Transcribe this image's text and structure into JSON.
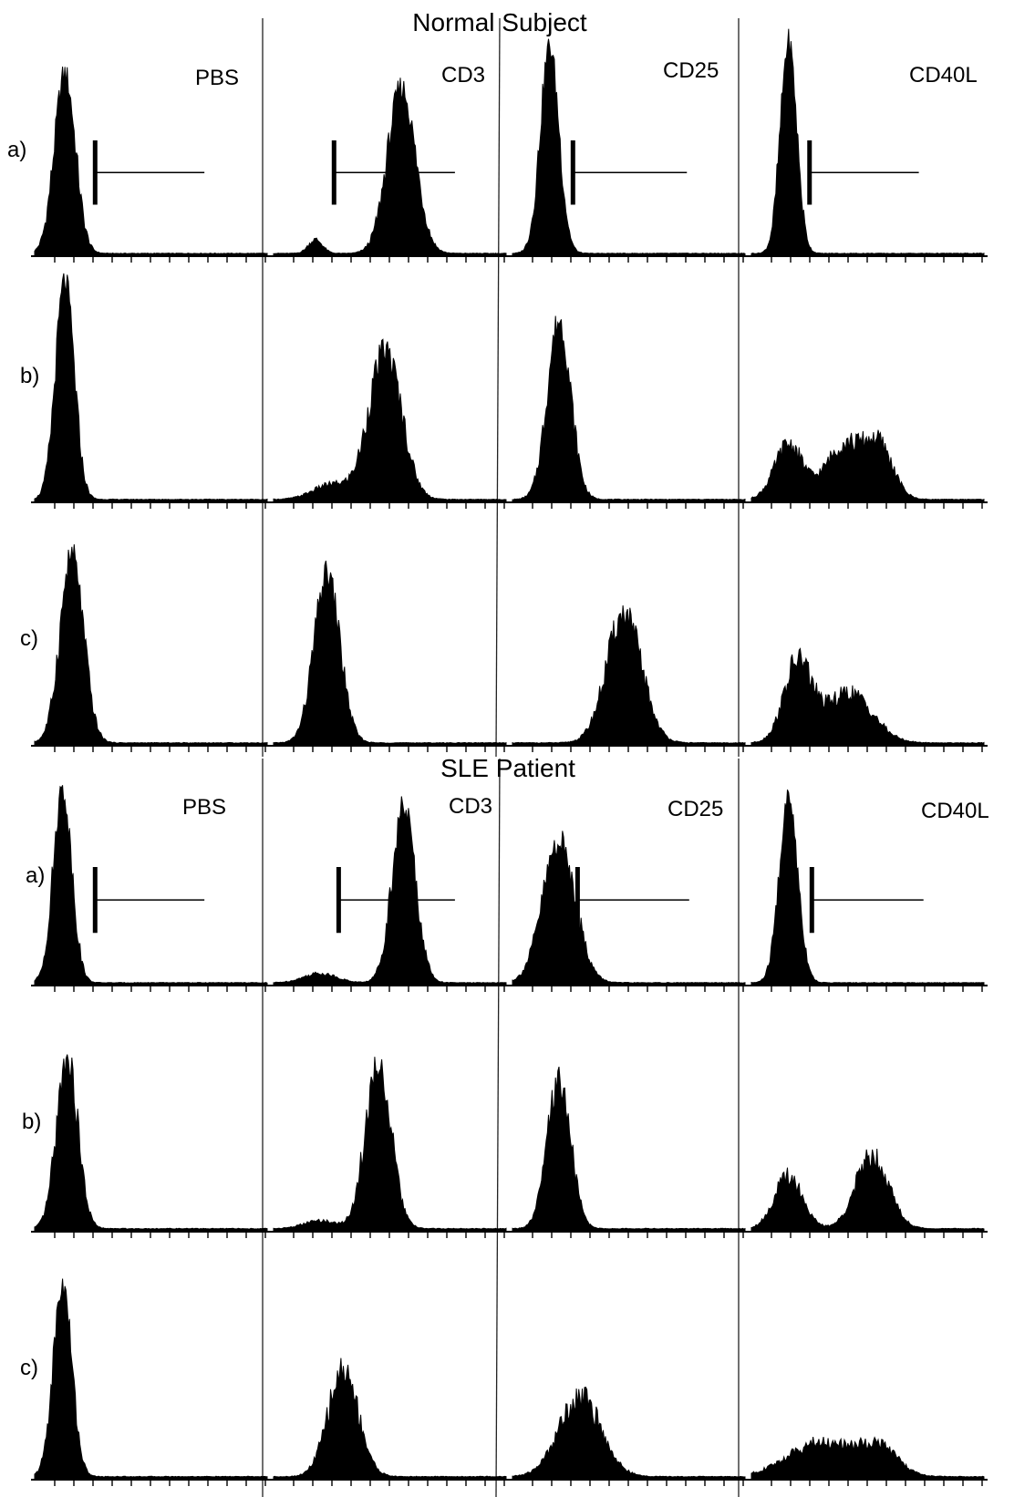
{
  "figure": {
    "sections": [
      {
        "title": "Normal Subject",
        "columns": [
          "PBS",
          "CD3",
          "CD25",
          "CD40L"
        ],
        "rows": [
          "a)",
          "b)",
          "c)"
        ]
      },
      {
        "title": "SLE Patient",
        "columns": [
          "PBS",
          "CD3",
          "CD25",
          "CD40L"
        ],
        "rows": [
          "a)",
          "b)",
          "c)"
        ]
      }
    ]
  },
  "chart_data": {
    "type": "area",
    "description_axes": "flow cytometry fluorescence histograms, relative fluorescence (0-1) vs relative cell count (0-1)",
    "xlim": [
      0,
      1
    ],
    "ylim": [
      0,
      1
    ],
    "panels": [
      {
        "section": "Normal Subject",
        "row": "a)",
        "column": "PBS",
        "peaks": [
          {
            "center": 0.13,
            "width": 0.045,
            "height": 0.78
          }
        ],
        "gate": {
          "start": 0.26,
          "end": 0.73
        }
      },
      {
        "section": "Normal Subject",
        "row": "a)",
        "column": "CD3",
        "peaks": [
          {
            "center": 0.55,
            "width": 0.06,
            "height": 0.72
          },
          {
            "center": 0.18,
            "width": 0.03,
            "height": 0.06
          }
        ],
        "gate": {
          "start": 0.26,
          "end": 0.78
        }
      },
      {
        "section": "Normal Subject",
        "row": "a)",
        "column": "CD25",
        "peaks": [
          {
            "center": 0.16,
            "width": 0.04,
            "height": 0.9
          }
        ],
        "gate": {
          "start": 0.26,
          "end": 0.75
        }
      },
      {
        "section": "Normal Subject",
        "row": "a)",
        "column": "CD40L",
        "peaks": [
          {
            "center": 0.16,
            "width": 0.035,
            "height": 0.92
          }
        ],
        "gate": {
          "start": 0.25,
          "end": 0.72
        }
      },
      {
        "section": "Normal Subject",
        "row": "b)",
        "column": "PBS",
        "peaks": [
          {
            "center": 0.13,
            "width": 0.04,
            "height": 0.88
          }
        ]
      },
      {
        "section": "Normal Subject",
        "row": "b)",
        "column": "CD3",
        "peaks": [
          {
            "center": 0.48,
            "width": 0.07,
            "height": 0.6
          },
          {
            "center": 0.25,
            "width": 0.08,
            "height": 0.06
          }
        ]
      },
      {
        "section": "Normal Subject",
        "row": "b)",
        "column": "CD25",
        "peaks": [
          {
            "center": 0.2,
            "width": 0.05,
            "height": 0.72
          }
        ]
      },
      {
        "section": "Normal Subject",
        "row": "b)",
        "column": "CD40L",
        "peaks": [
          {
            "center": 0.16,
            "width": 0.06,
            "height": 0.22
          },
          {
            "center": 0.4,
            "width": 0.08,
            "height": 0.22
          },
          {
            "center": 0.55,
            "width": 0.06,
            "height": 0.2
          }
        ]
      },
      {
        "section": "Normal Subject",
        "row": "c)",
        "column": "PBS",
        "peaks": [
          {
            "center": 0.16,
            "width": 0.05,
            "height": 0.76
          }
        ]
      },
      {
        "section": "Normal Subject",
        "row": "c)",
        "column": "CD3",
        "peaks": [
          {
            "center": 0.23,
            "width": 0.055,
            "height": 0.68
          }
        ]
      },
      {
        "section": "Normal Subject",
        "row": "c)",
        "column": "CD25",
        "peaks": [
          {
            "center": 0.48,
            "width": 0.075,
            "height": 0.52
          }
        ]
      },
      {
        "section": "Normal Subject",
        "row": "c)",
        "column": "CD40L",
        "peaks": [
          {
            "center": 0.2,
            "width": 0.06,
            "height": 0.32
          },
          {
            "center": 0.42,
            "width": 0.1,
            "height": 0.2
          }
        ]
      },
      {
        "section": "SLE Patient",
        "row": "a)",
        "column": "PBS",
        "peaks": [
          {
            "center": 0.12,
            "width": 0.04,
            "height": 0.82
          }
        ],
        "gate": {
          "start": 0.26,
          "end": 0.73
        }
      },
      {
        "section": "SLE Patient",
        "row": "a)",
        "column": "CD3",
        "peaks": [
          {
            "center": 0.56,
            "width": 0.05,
            "height": 0.75
          },
          {
            "center": 0.2,
            "width": 0.07,
            "height": 0.04
          }
        ],
        "gate": {
          "start": 0.28,
          "end": 0.78
        }
      },
      {
        "section": "SLE Patient",
        "row": "a)",
        "column": "CD25",
        "peaks": [
          {
            "center": 0.2,
            "width": 0.07,
            "height": 0.6
          }
        ],
        "gate": {
          "start": 0.28,
          "end": 0.76
        }
      },
      {
        "section": "SLE Patient",
        "row": "a)",
        "column": "CD40L",
        "peaks": [
          {
            "center": 0.16,
            "width": 0.04,
            "height": 0.78
          }
        ],
        "gate": {
          "start": 0.26,
          "end": 0.74
        }
      },
      {
        "section": "SLE Patient",
        "row": "b)",
        "column": "PBS",
        "peaks": [
          {
            "center": 0.14,
            "width": 0.045,
            "height": 0.65
          }
        ]
      },
      {
        "section": "SLE Patient",
        "row": "b)",
        "column": "CD3",
        "peaks": [
          {
            "center": 0.45,
            "width": 0.055,
            "height": 0.62
          },
          {
            "center": 0.2,
            "width": 0.07,
            "height": 0.03
          }
        ]
      },
      {
        "section": "SLE Patient",
        "row": "b)",
        "column": "CD25",
        "peaks": [
          {
            "center": 0.2,
            "width": 0.05,
            "height": 0.56
          }
        ]
      },
      {
        "section": "SLE Patient",
        "row": "b)",
        "column": "CD40L",
        "peaks": [
          {
            "center": 0.16,
            "width": 0.06,
            "height": 0.2
          },
          {
            "center": 0.52,
            "width": 0.07,
            "height": 0.28
          }
        ]
      },
      {
        "section": "SLE Patient",
        "row": "c)",
        "column": "PBS",
        "peaks": [
          {
            "center": 0.12,
            "width": 0.04,
            "height": 0.72
          }
        ]
      },
      {
        "section": "SLE Patient",
        "row": "c)",
        "column": "CD3",
        "peaks": [
          {
            "center": 0.3,
            "width": 0.065,
            "height": 0.4
          }
        ]
      },
      {
        "section": "SLE Patient",
        "row": "c)",
        "column": "CD25",
        "peaks": [
          {
            "center": 0.29,
            "width": 0.09,
            "height": 0.3
          }
        ]
      },
      {
        "section": "SLE Patient",
        "row": "c)",
        "column": "CD40L",
        "peaks": [
          {
            "center": 0.3,
            "width": 0.14,
            "height": 0.13
          },
          {
            "center": 0.55,
            "width": 0.08,
            "height": 0.1
          }
        ]
      }
    ]
  }
}
